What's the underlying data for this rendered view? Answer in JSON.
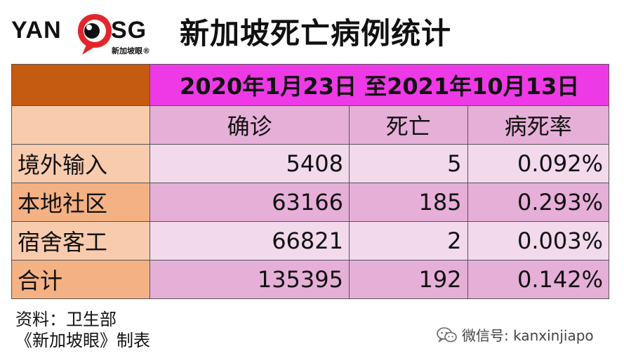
{
  "logo": {
    "text_left": "YAN",
    "text_right": "SG",
    "subtitle": "新加坡眼®"
  },
  "title": "新加坡死亡病例统计",
  "table": {
    "period": "2020年1月23日 至2021年10月13日",
    "columns": [
      "确诊",
      "死亡",
      "病死率"
    ],
    "rows": [
      {
        "label": "境外输入",
        "confirmed": "5408",
        "deaths": "5",
        "fatality_rate": "0.092%"
      },
      {
        "label": "本地社区",
        "confirmed": "63166",
        "deaths": "185",
        "fatality_rate": "0.293%"
      },
      {
        "label": "宿舍客工",
        "confirmed": "66821",
        "deaths": "2",
        "fatality_rate": "0.003%"
      },
      {
        "label": "合计",
        "confirmed": "135395",
        "deaths": "192",
        "fatality_rate": "0.142%"
      }
    ]
  },
  "source": {
    "line1": "资料：卫生部",
    "line2": "《新加坡眼》制表"
  },
  "watermark": {
    "icon": "wechat-icon",
    "text": "微信号: kanxinjiapo"
  },
  "colors": {
    "corner": "#c55a11",
    "period_header": "#ee3ae6",
    "row_label_light": "#f8cbad",
    "row_label_dark": "#f4b183",
    "cell_light": "#f2d9ec",
    "cell_dark": "#e6afd8",
    "logo_red": "#e3262b"
  }
}
